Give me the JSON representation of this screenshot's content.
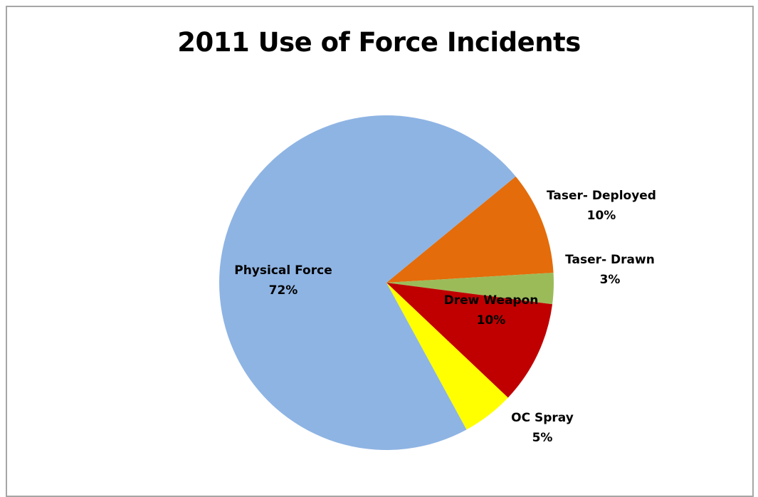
{
  "chart_data": {
    "type": "pie",
    "title": "2011 Use of Force Incidents",
    "legend": "none",
    "slices": [
      {
        "label": "Taser- Deployed",
        "value": 10,
        "percent_label": "10%",
        "color": "#e46c0a",
        "label_color": "#000000"
      },
      {
        "label": "Taser- Drawn",
        "value": 3,
        "percent_label": "3%",
        "color": "#9bbb59",
        "label_color": "#000000"
      },
      {
        "label": "Drew Weapon",
        "value": 10,
        "percent_label": "10%",
        "color": "#c00000",
        "label_color": "#000000"
      },
      {
        "label": "OC Spray",
        "value": 5,
        "percent_label": "5%",
        "color": "#ffff00",
        "label_color": "#000000"
      },
      {
        "label": "Physical Force",
        "value": 72,
        "percent_label": "72%",
        "color": "#8eb4e3",
        "label_color": "#000000"
      }
    ]
  }
}
